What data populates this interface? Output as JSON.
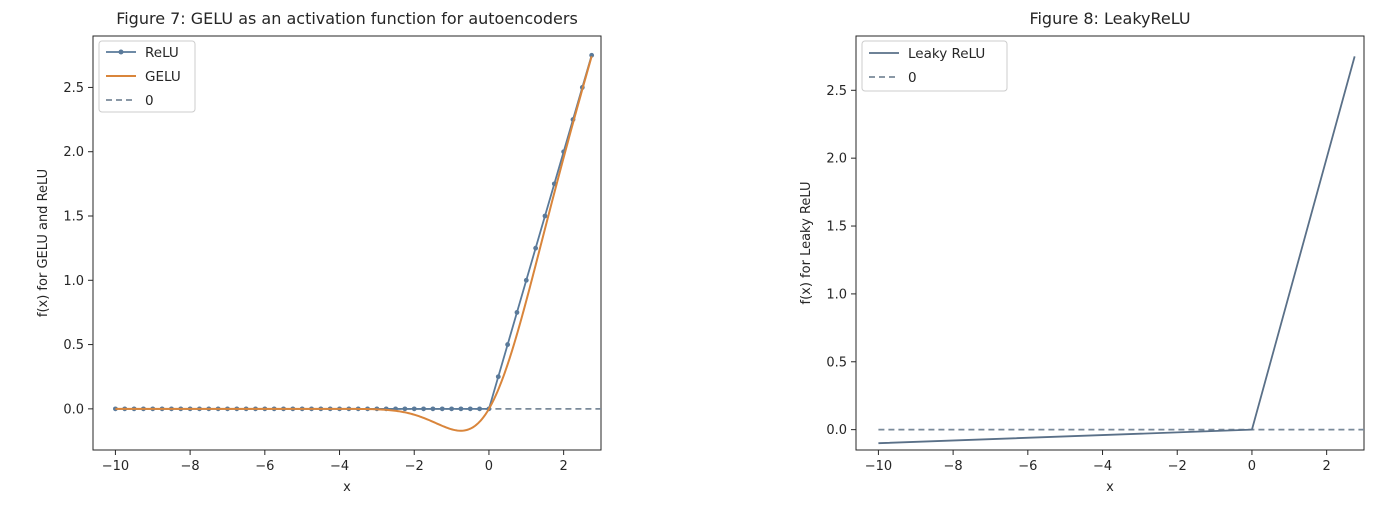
{
  "chart_data": [
    {
      "type": "line",
      "title": "Figure 7: GELU as an activation function for autoencoders",
      "xlabel": "x",
      "ylabel": "f(x) for GELU and ReLU",
      "xlim": [
        -10.6,
        3.0
      ],
      "ylim": [
        -0.32,
        2.9
      ],
      "xticks": [
        -10,
        -8,
        -6,
        -4,
        -2,
        0,
        2
      ],
      "yticks": [
        0.0,
        0.5,
        1.0,
        1.5,
        2.0,
        2.5
      ],
      "xtick_labels": [
        "−10",
        "−8",
        "−6",
        "−4",
        "−2",
        "0",
        "2"
      ],
      "ytick_labels": [
        "0.0",
        "0.5",
        "1.0",
        "1.5",
        "2.0",
        "2.5"
      ],
      "legend_position": "upper-left",
      "grid": false,
      "series": [
        {
          "name": "ReLU",
          "kind": "relu",
          "x_start": -10,
          "x_end": 2.75,
          "x_step": 0.25,
          "color": "#5a7a9a",
          "style": "solid-markers"
        },
        {
          "name": "GELU",
          "kind": "gelu",
          "x_start": -10,
          "x_end": 2.75,
          "color": "#d9853b",
          "style": "solid"
        },
        {
          "name": "0",
          "kind": "zero",
          "x_start": -10,
          "x_end": 3.0,
          "color": "#7a8a9a",
          "style": "dashed"
        }
      ]
    },
    {
      "type": "line",
      "title": "Figure 8: LeakyReLU",
      "xlabel": "x",
      "ylabel": "f(x) for Leaky ReLU",
      "xlim": [
        -10.6,
        3.0
      ],
      "ylim": [
        -0.15,
        2.9
      ],
      "xticks": [
        -10,
        -8,
        -6,
        -4,
        -2,
        0,
        2
      ],
      "yticks": [
        0.0,
        0.5,
        1.0,
        1.5,
        2.0,
        2.5
      ],
      "xtick_labels": [
        "−10",
        "−8",
        "−6",
        "−4",
        "−2",
        "0",
        "2"
      ],
      "ytick_labels": [
        "0.0",
        "0.5",
        "1.0",
        "1.5",
        "2.0",
        "2.5"
      ],
      "legend_position": "upper-left",
      "grid": false,
      "series": [
        {
          "name": "Leaky ReLU",
          "kind": "line-points",
          "x": [
            -10,
            0,
            2.75
          ],
          "y": [
            -0.1,
            0,
            2.75
          ],
          "color": "#5a7088",
          "style": "solid"
        },
        {
          "name": "0",
          "kind": "zero",
          "x_start": -10,
          "x_end": 3.0,
          "color": "#7a8a9a",
          "style": "dashed"
        }
      ]
    }
  ]
}
